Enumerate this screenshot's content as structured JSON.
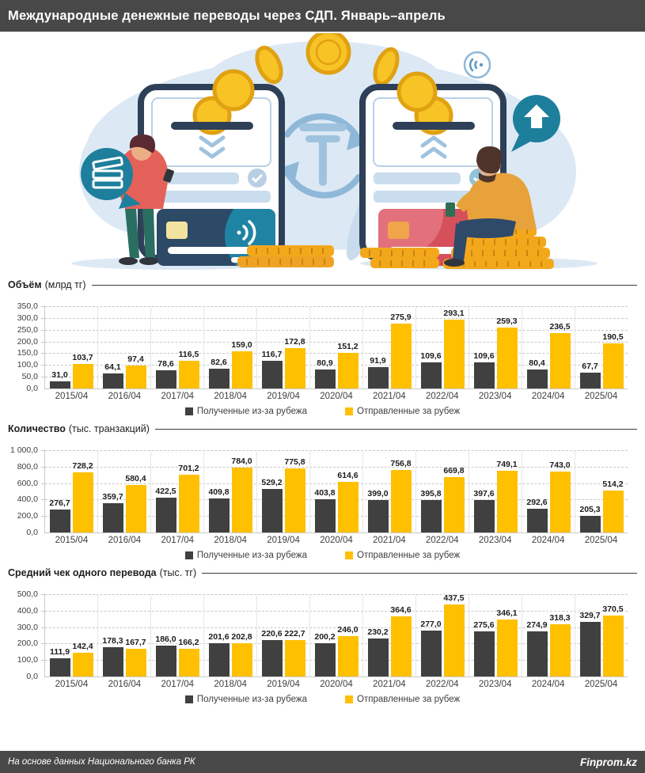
{
  "header": {
    "title": "Международные денежные переводы через СДП. Январь–апрель"
  },
  "footer": {
    "source": "На основе данных Национального банка РК",
    "brand": "Finprom.kz"
  },
  "colors": {
    "received": "#404040",
    "sent": "#FFC000",
    "bar_dark": "#484848",
    "teal": "#1d7f9c",
    "light_blue": "#dce9f5"
  },
  "illustration": {
    "icons": [
      "smartphone-icon",
      "tenge-exchange-icon",
      "coin-icon",
      "bank-card-icon",
      "contactless-waves-icon",
      "cash-bubble-icon",
      "send-arrow-bubble-icon"
    ]
  },
  "chart_data": [
    {
      "type": "bar",
      "title": "Объём",
      "unit": "(млрд тг)",
      "categories": [
        "2015/04",
        "2016/04",
        "2017/04",
        "2018/04",
        "2019/04",
        "2020/04",
        "2021/04",
        "2022/04",
        "2023/04",
        "2024/04",
        "2025/04"
      ],
      "series": [
        {
          "name": "Полученные из-за рубежа",
          "color": "#404040",
          "values": [
            31.0,
            64.1,
            78.6,
            82.6,
            116.7,
            80.9,
            91.9,
            109.6,
            109.6,
            80.4,
            67.7
          ]
        },
        {
          "name": "Отправленные за рубеж",
          "color": "#FFC000",
          "values": [
            103.7,
            97.4,
            116.5,
            159.0,
            172.8,
            151.2,
            275.9,
            293.1,
            259.3,
            236.5,
            190.5
          ]
        }
      ],
      "ylim": [
        0,
        350
      ],
      "ytick_step": 50,
      "grid": "horizontal-dashed",
      "legend_position": "bottom"
    },
    {
      "type": "bar",
      "title": "Количество",
      "unit": "(тыс. транзакций)",
      "categories": [
        "2015/04",
        "2016/04",
        "2017/04",
        "2018/04",
        "2019/04",
        "2020/04",
        "2021/04",
        "2022/04",
        "2023/04",
        "2024/04",
        "2025/04"
      ],
      "series": [
        {
          "name": "Полученные из-за рубежа",
          "color": "#404040",
          "values": [
            276.7,
            359.7,
            422.5,
            409.8,
            529.2,
            403.8,
            399.0,
            395.8,
            397.6,
            292.6,
            205.3
          ]
        },
        {
          "name": "Отправленные за рубеж",
          "color": "#FFC000",
          "values": [
            728.2,
            580.4,
            701.2,
            784.0,
            775.8,
            614.6,
            756.8,
            669.8,
            749.1,
            743.0,
            514.2
          ]
        }
      ],
      "ylim": [
        0,
        1000
      ],
      "ytick_step": 200,
      "grid": "horizontal-dashed",
      "legend_position": "bottom"
    },
    {
      "type": "bar",
      "title": "Средний чек одного перевода",
      "unit": "(тыс. тг)",
      "categories": [
        "2015/04",
        "2016/04",
        "2017/04",
        "2018/04",
        "2019/04",
        "2020/04",
        "2021/04",
        "2022/04",
        "2023/04",
        "2024/04",
        "2025/04"
      ],
      "series": [
        {
          "name": "Полученные из-за рубежа",
          "color": "#404040",
          "values": [
            111.9,
            178.3,
            186.0,
            201.6,
            220.6,
            200.2,
            230.2,
            277.0,
            275.6,
            274.9,
            329.7
          ]
        },
        {
          "name": "Отправленные за рубеж",
          "color": "#FFC000",
          "values": [
            142.4,
            167.7,
            166.2,
            202.8,
            222.7,
            246.0,
            364.6,
            437.5,
            346.1,
            318.3,
            370.5
          ]
        }
      ],
      "ylim": [
        0,
        500
      ],
      "ytick_step": 100,
      "grid": "horizontal-dashed",
      "legend_position": "bottom"
    }
  ]
}
